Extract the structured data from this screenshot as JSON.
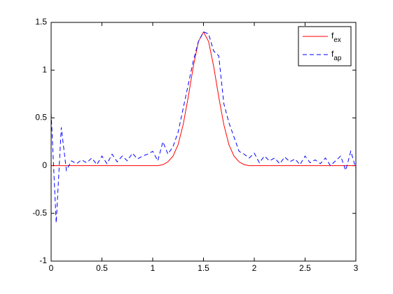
{
  "chart_data": {
    "type": "line",
    "x": [
      0,
      0.05,
      0.1,
      0.15,
      0.2,
      0.25,
      0.3,
      0.35,
      0.4,
      0.45,
      0.5,
      0.55,
      0.6,
      0.65,
      0.7,
      0.75,
      0.8,
      0.85,
      0.9,
      0.95,
      1.0,
      1.05,
      1.1,
      1.15,
      1.2,
      1.25,
      1.3,
      1.35,
      1.4,
      1.45,
      1.5,
      1.55,
      1.6,
      1.65,
      1.7,
      1.75,
      1.8,
      1.85,
      1.9,
      1.95,
      2.0,
      2.05,
      2.1,
      2.15,
      2.2,
      2.25,
      2.3,
      2.35,
      2.4,
      2.45,
      2.5,
      2.55,
      2.6,
      2.65,
      2.7,
      2.75,
      2.8,
      2.85,
      2.9,
      2.95,
      3.0
    ],
    "series": [
      {
        "name": "f_ex",
        "color": "#ff0000",
        "dash": false,
        "values": [
          0,
          0,
          0,
          0,
          0,
          0,
          0,
          0,
          0,
          0,
          0,
          0,
          0,
          0,
          0,
          0,
          0,
          0,
          0,
          0,
          0,
          0,
          0.01,
          0.04,
          0.1,
          0.22,
          0.43,
          0.72,
          1.04,
          1.3,
          1.4,
          1.3,
          1.04,
          0.72,
          0.43,
          0.22,
          0.1,
          0.04,
          0.01,
          0,
          0,
          0,
          0,
          0,
          0,
          0,
          0,
          0,
          0,
          0,
          0,
          0,
          0,
          0,
          0,
          0,
          0,
          0,
          0,
          0,
          0
        ]
      },
      {
        "name": "f_ap",
        "color": "#0000ff",
        "dash": true,
        "values": [
          0.55,
          -0.6,
          0.4,
          -0.05,
          0.05,
          0.02,
          0.06,
          0.03,
          0.08,
          0.01,
          0.1,
          0.02,
          0.12,
          0.04,
          0.1,
          0.05,
          0.13,
          0.07,
          0.1,
          0.12,
          0.15,
          0.05,
          0.25,
          0.12,
          0.2,
          0.35,
          0.6,
          0.85,
          1.1,
          1.3,
          1.4,
          1.38,
          1.2,
          1.15,
          0.65,
          0.45,
          0.3,
          0.15,
          0.12,
          0.08,
          0.13,
          0.03,
          0.1,
          0.05,
          0.08,
          0.02,
          0.09,
          0.04,
          0.07,
          0.01,
          0.1,
          0.03,
          0.06,
          0.02,
          0.08,
          0.0,
          0.05,
          0.1,
          -0.05,
          0.15,
          -0.03
        ]
      }
    ],
    "xlim": [
      0,
      3
    ],
    "xticks": [
      0,
      0.5,
      1,
      1.5,
      2,
      2.5,
      3
    ],
    "ylim": [
      -1,
      1.5
    ],
    "yticks": [
      -1,
      -0.5,
      0,
      0.5,
      1,
      1.5
    ],
    "grid": false,
    "legend": "upper-right"
  }
}
